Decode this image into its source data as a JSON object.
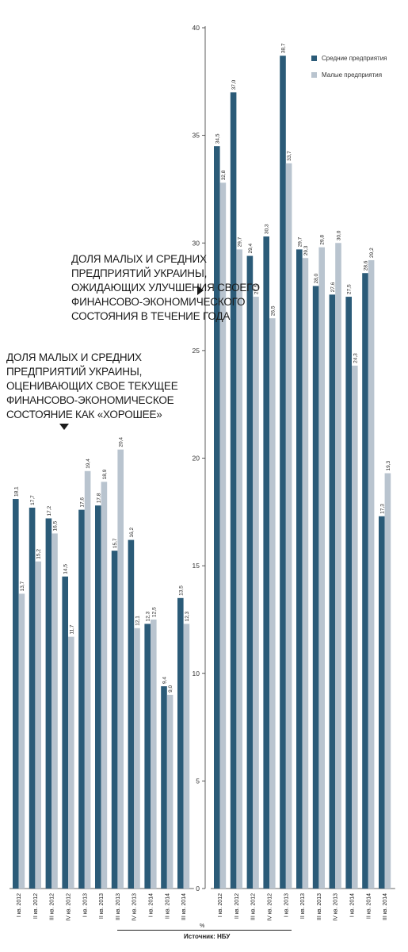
{
  "chart_data": [
    {
      "id": "current",
      "type": "bar",
      "title_lines": [
        "Доля малых и средних",
        "предприятий Украины,",
        "оценивающих свое текущее",
        "финансово-экономическое",
        "состояние как «хорошее»"
      ],
      "categories": [
        "I кв. 2012",
        "II кв. 2012",
        "III кв. 2012",
        "IV кв. 2012",
        "I кв. 2013",
        "II кв. 2013",
        "III кв. 2013",
        "IV кв. 2013",
        "I кв. 2014",
        "II кв. 2014",
        "III кв. 2014"
      ],
      "series": [
        {
          "name": "Средние предприятия",
          "color": "#2b5b78",
          "values": [
            18.1,
            17.7,
            17.2,
            14.5,
            17.6,
            17.8,
            15.7,
            16.2,
            12.3,
            9.4,
            13.5
          ],
          "labels": [
            "18,1",
            "17,7",
            "17,2",
            "14,5",
            "17,6",
            "17,8",
            "15,7",
            "16,2",
            "12,3",
            "9,4",
            "13,5"
          ]
        },
        {
          "name": "Малые предприятия",
          "color": "#b9c4cf",
          "values": [
            13.7,
            15.2,
            16.5,
            11.7,
            19.4,
            18.9,
            20.4,
            12.1,
            12.5,
            9.0,
            12.3
          ],
          "labels": [
            "13,7",
            "15,2",
            "16,5",
            "11,7",
            "19,4",
            "18,9",
            "20,4",
            "12,1",
            "12,5",
            "9,0",
            "12,3"
          ]
        }
      ],
      "ylim": [
        0,
        40
      ]
    },
    {
      "id": "expect",
      "type": "bar",
      "title_lines": [
        "Доля малых и средних",
        "предприятий Украины,",
        "ожидающих улучшения своего",
        "финансово-экономического",
        "состояния в течение года"
      ],
      "categories": [
        "I кв. 2012",
        "II кв. 2012",
        "III кв. 2012",
        "IV кв. 2012",
        "I кв. 2013",
        "II кв. 2013",
        "III кв. 2013",
        "IV кв. 2013",
        "I кв. 2014",
        "II кв. 2014",
        "III кв. 2014"
      ],
      "series": [
        {
          "name": "Средние предприятия",
          "color": "#2b5b78",
          "values": [
            34.5,
            37.0,
            29.4,
            30.3,
            38.7,
            29.7,
            28.0,
            27.6,
            27.5,
            28.6,
            17.3
          ],
          "labels": [
            "34,5",
            "37,0",
            "29,4",
            "30,3",
            "38,7",
            "29,7",
            "28,0",
            "27,6",
            "27,5",
            "28,6",
            "17,3"
          ]
        },
        {
          "name": "Малые предприятия",
          "color": "#b9c4cf",
          "values": [
            32.8,
            29.7,
            27.5,
            26.5,
            33.7,
            29.3,
            29.8,
            30.0,
            24.3,
            29.2,
            19.3
          ],
          "labels": [
            "32,8",
            "29,7",
            "27,5",
            "26,5",
            "33,7",
            "29,3",
            "29,8",
            "30,0",
            "24,3",
            "29,2",
            "19,3"
          ]
        }
      ],
      "ylim": [
        0,
        40
      ],
      "yticks": [
        0,
        5,
        10,
        15,
        20,
        25,
        30,
        35,
        40
      ]
    }
  ],
  "legend": {
    "medium": "Средние предприятия",
    "small": "Малые предприятия",
    "medium_color": "#2b5b78",
    "small_color": "#b9c4cf"
  },
  "unit": "%",
  "source": "Источник: НБУ"
}
